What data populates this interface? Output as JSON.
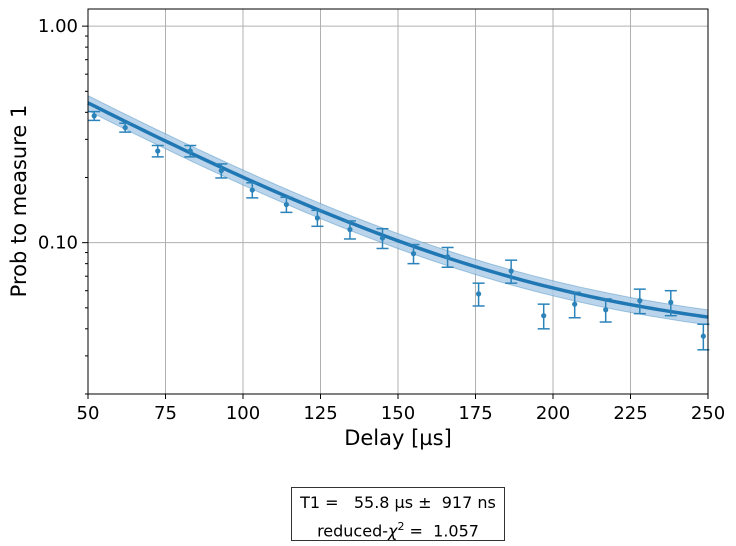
{
  "chart_data": {
    "type": "scatter",
    "xlabel": "Delay [µs]",
    "ylabel": "Prob to measure 1",
    "xlim": [
      50,
      250
    ],
    "ylim": [
      0.02,
      1.2
    ],
    "yscale": "log",
    "grid": true,
    "x_ticks": [
      "50",
      "75",
      "100",
      "125",
      "150",
      "175",
      "200",
      "225",
      "250"
    ],
    "y_ticks": [
      "0.10",
      "1.00"
    ],
    "colors": {
      "data": "#2b83ba",
      "fit": "#1f77b4",
      "band": "#a9c9e6"
    },
    "measurements": {
      "x": [
        52,
        62,
        72.5,
        83,
        93,
        103,
        114,
        124,
        134.5,
        145,
        155,
        166,
        176,
        186.5,
        197,
        207,
        217,
        228,
        238,
        248.5
      ],
      "y": [
        0.385,
        0.34,
        0.265,
        0.265,
        0.215,
        0.175,
        0.15,
        0.13,
        0.115,
        0.105,
        0.089,
        0.086,
        0.058,
        0.074,
        0.046,
        0.052,
        0.049,
        0.054,
        0.053,
        0.037
      ],
      "err": [
        0.018,
        0.016,
        0.016,
        0.016,
        0.016,
        0.014,
        0.012,
        0.011,
        0.011,
        0.011,
        0.009,
        0.009,
        0.007,
        0.009,
        0.006,
        0.007,
        0.006,
        0.007,
        0.007,
        0.005
      ]
    },
    "fit": {
      "model": "A*exp(-t/T1)+B",
      "A": 1.0,
      "T1": 55.8,
      "B": 0.034,
      "band_fraction": 0.08
    },
    "annotation": {
      "line1": "T1 =   55.8 µs ±  917 ns",
      "line2_prefix": "reduced-",
      "line2_chi": "χ",
      "line2_sup": "2",
      "line2_suffix": " =  1.057"
    }
  }
}
